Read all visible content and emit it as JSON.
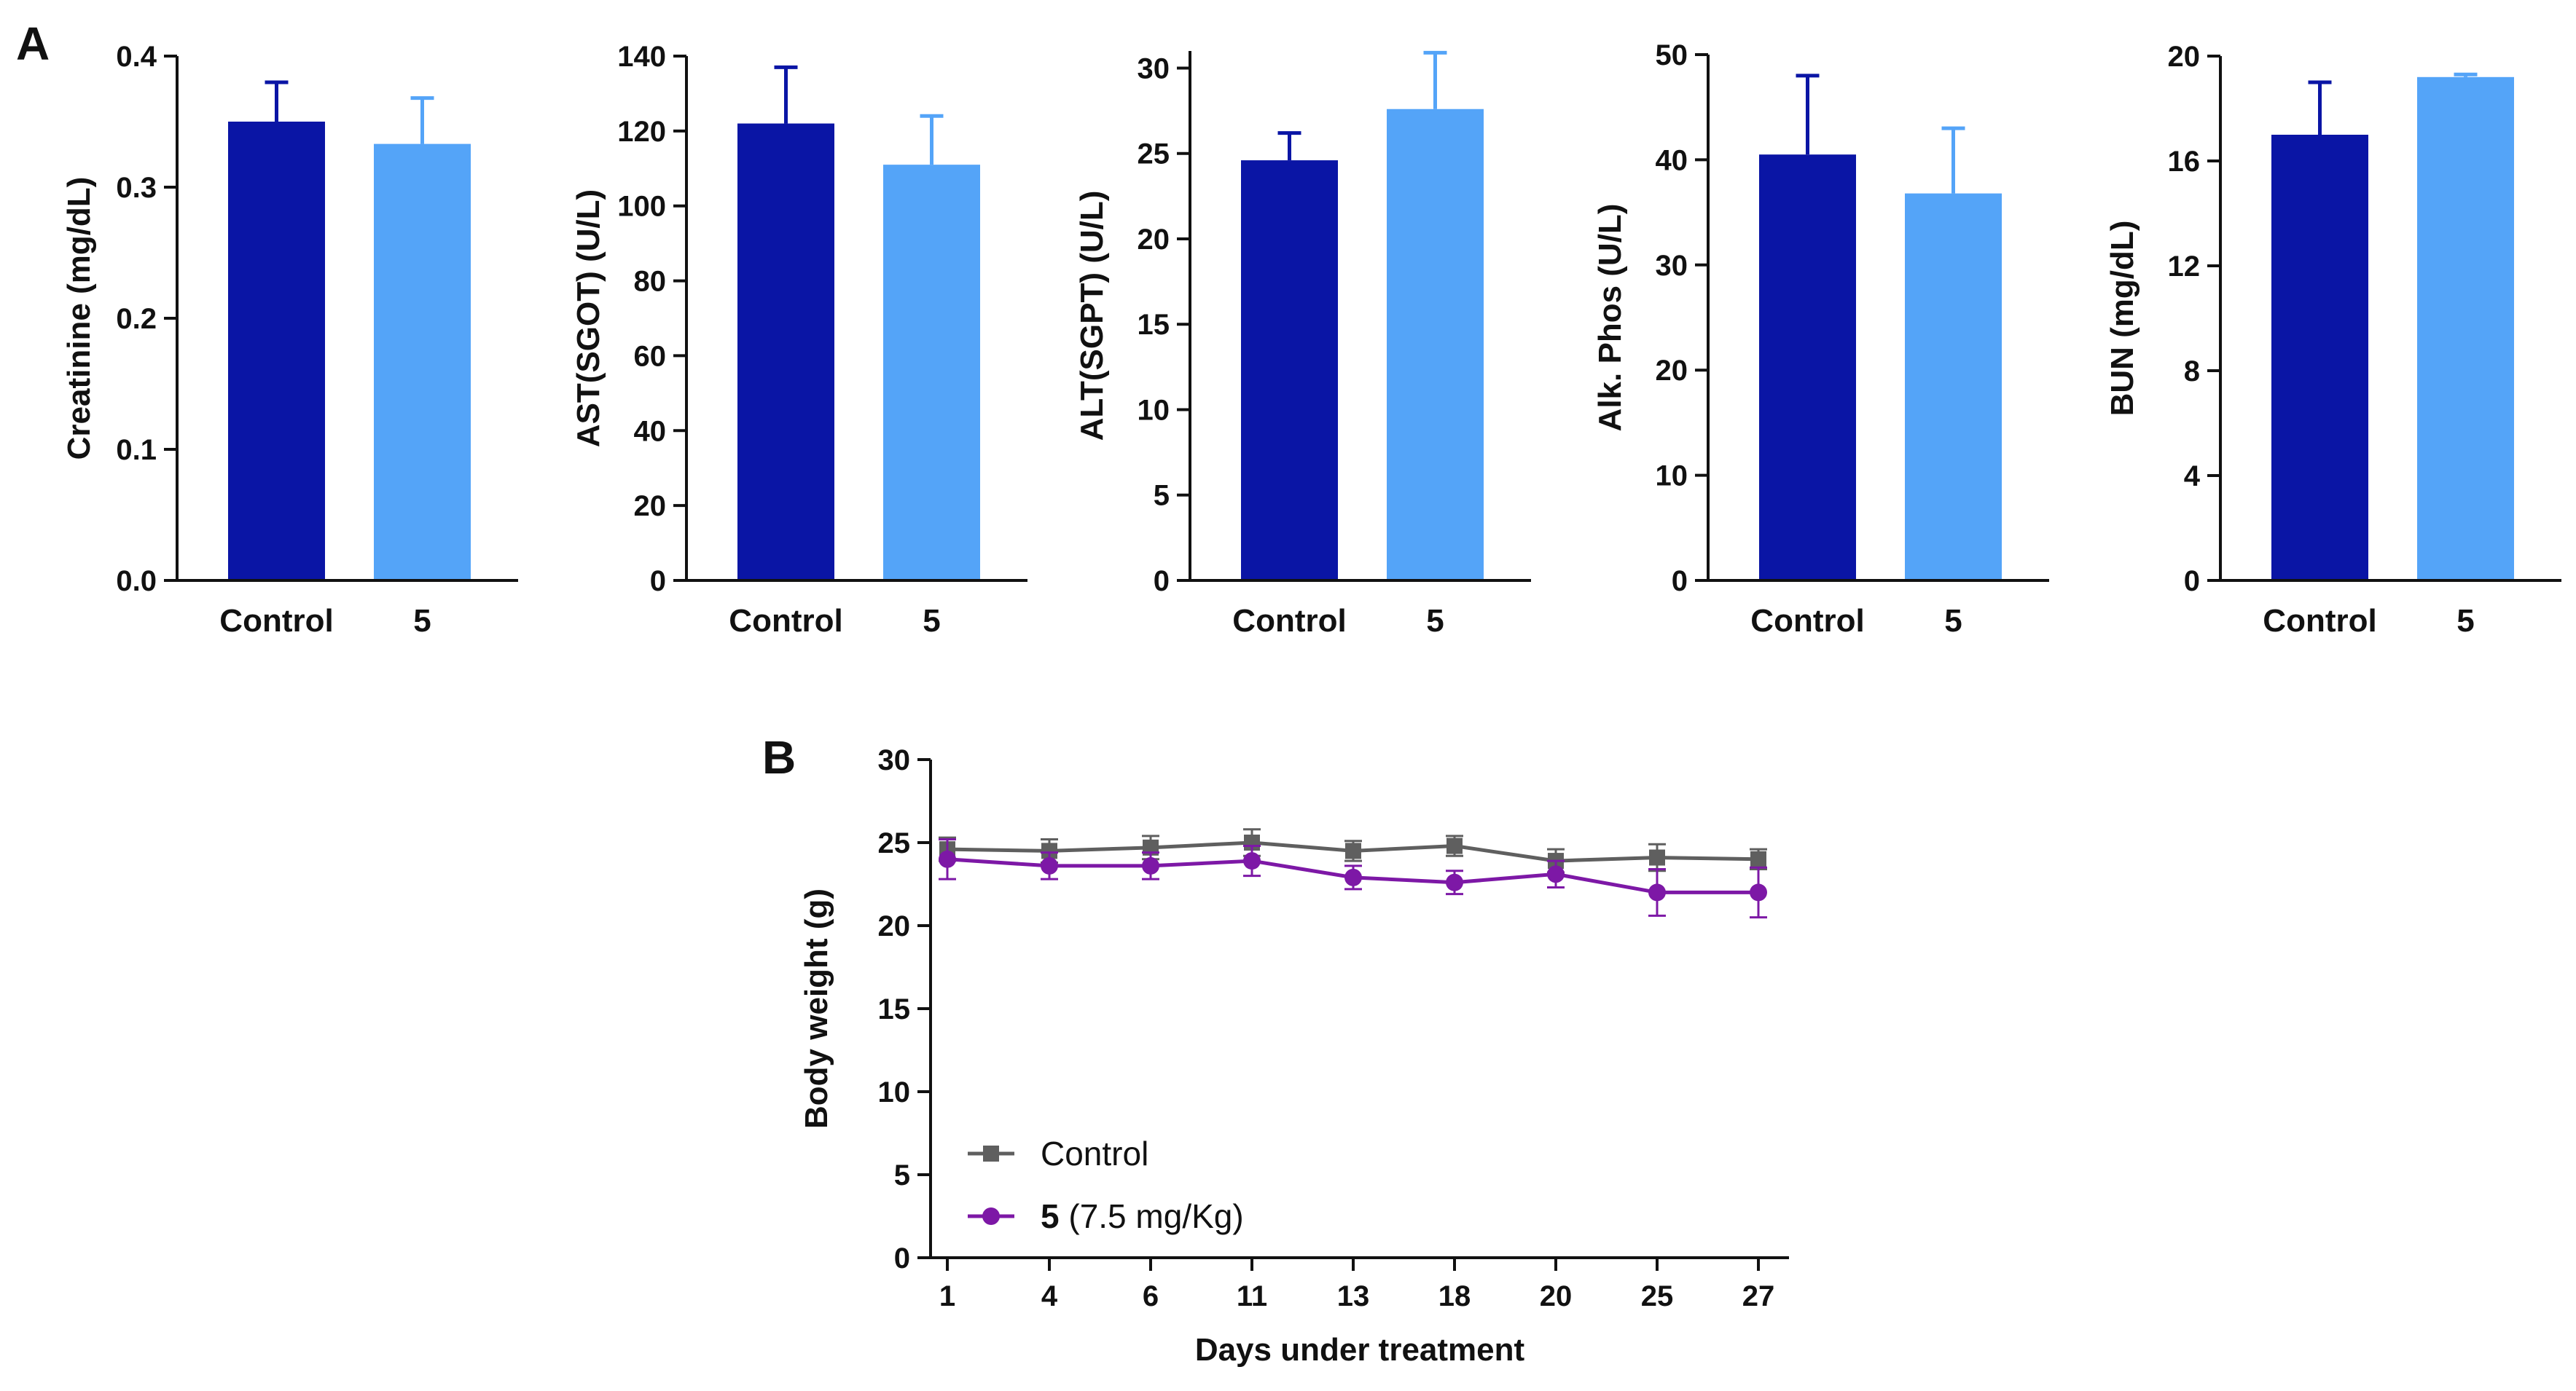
{
  "panels": {
    "a": {
      "letter": "A"
    },
    "b": {
      "letter": "B"
    }
  },
  "colors": {
    "control_bar": "#0a15a5",
    "treated_bar": "#54a4f8",
    "control_line": "#5f5f5f",
    "treated_line": "#7d18a6",
    "axis": "#111111"
  },
  "chart_data": [
    {
      "type": "bar",
      "categories": [
        "Control",
        "5"
      ],
      "values": [
        0.35,
        0.333
      ],
      "errors": [
        0.03,
        0.035
      ],
      "ylabel": "Creatinine (mg/dL)",
      "ylim": [
        0,
        0.4
      ],
      "yticks": [
        0.0,
        0.1,
        0.2,
        0.3,
        0.4
      ],
      "ytick_labels": [
        "0.0",
        "0.1",
        "0.2",
        "0.3",
        "0.4"
      ]
    },
    {
      "type": "bar",
      "categories": [
        "Control",
        "5"
      ],
      "values": [
        122,
        111
      ],
      "errors": [
        15,
        13
      ],
      "ylabel": "AST(SGOT) (U/L)",
      "ylim": [
        0,
        140
      ],
      "yticks": [
        0,
        20,
        40,
        60,
        80,
        100,
        120,
        140
      ],
      "ytick_labels": [
        "0",
        "20",
        "40",
        "60",
        "80",
        "100",
        "120",
        "140"
      ]
    },
    {
      "type": "bar",
      "categories": [
        "Control",
        "5"
      ],
      "values": [
        24.6,
        27.6
      ],
      "errors": [
        1.6,
        3.3
      ],
      "ylabel": "ALT(SGPT) (U/L)",
      "ylim": [
        0,
        31
      ],
      "yticks": [
        0,
        5,
        10,
        15,
        20,
        25,
        30
      ],
      "ytick_labels": [
        "0",
        "5",
        "10",
        "15",
        "20",
        "25",
        "30"
      ]
    },
    {
      "type": "bar",
      "categories": [
        "Control",
        "5"
      ],
      "values": [
        40.5,
        36.8
      ],
      "errors": [
        7.5,
        6.2
      ],
      "ylabel": "Alk. Phos (U/L)",
      "ylim": [
        0,
        50
      ],
      "yticks": [
        0,
        10,
        20,
        30,
        40,
        50
      ],
      "ytick_labels": [
        "0",
        "10",
        "20",
        "30",
        "40",
        "50"
      ]
    },
    {
      "type": "bar",
      "categories": [
        "Control",
        "5"
      ],
      "values": [
        17.0,
        19.2
      ],
      "errors": [
        2.0,
        0.1
      ],
      "ylabel": "BUN (mg/dL)",
      "ylim": [
        0,
        20
      ],
      "yticks": [
        0,
        4,
        8,
        12,
        16,
        20
      ],
      "ytick_labels": [
        "0",
        "4",
        "8",
        "12",
        "16",
        "20"
      ]
    },
    {
      "type": "line",
      "xlabel": "Days under treatment",
      "ylabel": "Body weight (g)",
      "x": [
        "1",
        "4",
        "6",
        "11",
        "13",
        "18",
        "20",
        "25",
        "27"
      ],
      "ylim": [
        0,
        30
      ],
      "yticks": [
        0,
        5,
        10,
        15,
        20,
        25,
        30
      ],
      "ytick_labels": [
        "0",
        "5",
        "10",
        "15",
        "20",
        "25",
        "30"
      ],
      "legend_position": "bottom-left",
      "series": [
        {
          "name": "Control",
          "marker": "square",
          "values": [
            24.6,
            24.5,
            24.7,
            25.0,
            24.5,
            24.8,
            23.9,
            24.1,
            24.0
          ],
          "errors": [
            0.7,
            0.7,
            0.7,
            0.8,
            0.6,
            0.6,
            0.7,
            0.8,
            0.6
          ]
        },
        {
          "name": "5",
          "name_suffix": "(7.5 mg/Kg)",
          "marker": "circle",
          "values": [
            24.0,
            23.6,
            23.6,
            23.9,
            22.9,
            22.6,
            23.1,
            22.0,
            22.0
          ],
          "errors": [
            1.2,
            0.8,
            0.8,
            0.9,
            0.7,
            0.7,
            0.8,
            1.4,
            1.5
          ]
        }
      ]
    }
  ]
}
